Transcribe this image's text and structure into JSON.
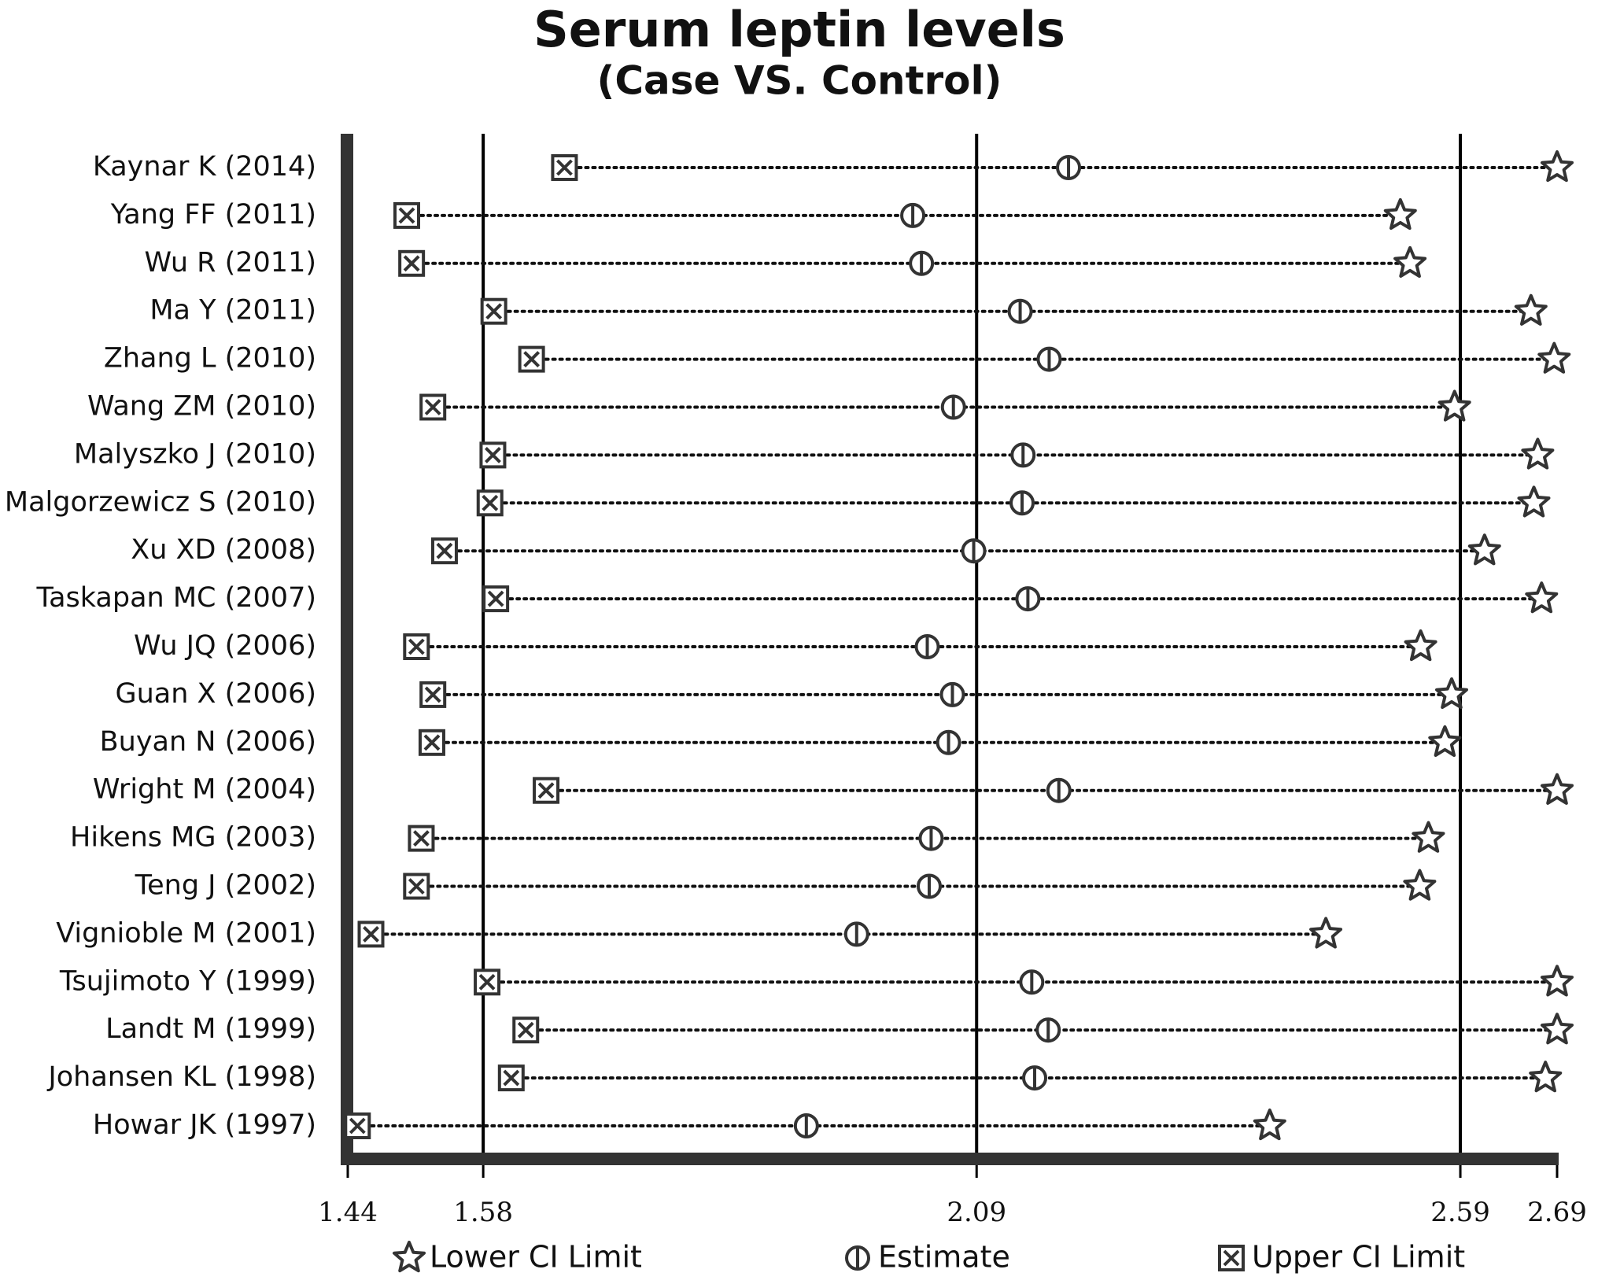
{
  "chart_data": {
    "type": "dot",
    "title": "Serum leptin levels",
    "subtitle": "(Case VS. Control)",
    "categories": [
      "Kaynar K (2014)",
      "Yang FF (2011)",
      "Wu R (2011)",
      "Ma Y (2011)",
      "Zhang L (2010)",
      "Wang ZM (2010)",
      "Malyszko J (2010)",
      "Malgorzewicz S (2010)",
      "Xu XD (2008)",
      "Taskapan MC (2007)",
      "Wu JQ (2006)",
      "Guan X (2006)",
      "Buyan N (2006)",
      "Wright M (2004)",
      "Hikens MG (2003)",
      "Teng J (2002)",
      "Vignioble M (2001)",
      "Tsujimoto Y (1999)",
      "Landt M (1999)",
      "Johansen KL (1998)",
      "Howar JK (1997)"
    ],
    "series": [
      {
        "name": "Lower CI Limit",
        "marker": "star",
        "color": "#333333",
        "values": [
          2.69,
          2.528,
          2.538,
          2.663,
          2.687,
          2.584,
          2.67,
          2.666,
          2.615,
          2.674,
          2.549,
          2.581,
          2.574,
          2.69,
          2.557,
          2.548,
          2.451,
          2.69,
          2.69,
          2.678,
          2.393
        ]
      },
      {
        "name": "Estimate",
        "marker": "circle",
        "color": "#333333",
        "values": [
          2.185,
          2.024,
          2.033,
          2.135,
          2.165,
          2.066,
          2.138,
          2.137,
          2.087,
          2.143,
          2.039,
          2.065,
          2.061,
          2.175,
          2.043,
          2.041,
          1.966,
          2.147,
          2.164,
          2.15,
          1.914
        ]
      },
      {
        "name": "Upper CI Limit",
        "marker": "square",
        "color": "#333333",
        "values": [
          1.664,
          1.501,
          1.506,
          1.591,
          1.63,
          1.528,
          1.59,
          1.587,
          1.54,
          1.593,
          1.511,
          1.528,
          1.527,
          1.645,
          1.516,
          1.511,
          1.464,
          1.584,
          1.624,
          1.609,
          1.45
        ]
      }
    ],
    "xlim": [
      1.44,
      2.69
    ],
    "xticks": [
      1.44,
      1.58,
      2.09,
      2.59,
      2.69
    ],
    "grid": true
  }
}
